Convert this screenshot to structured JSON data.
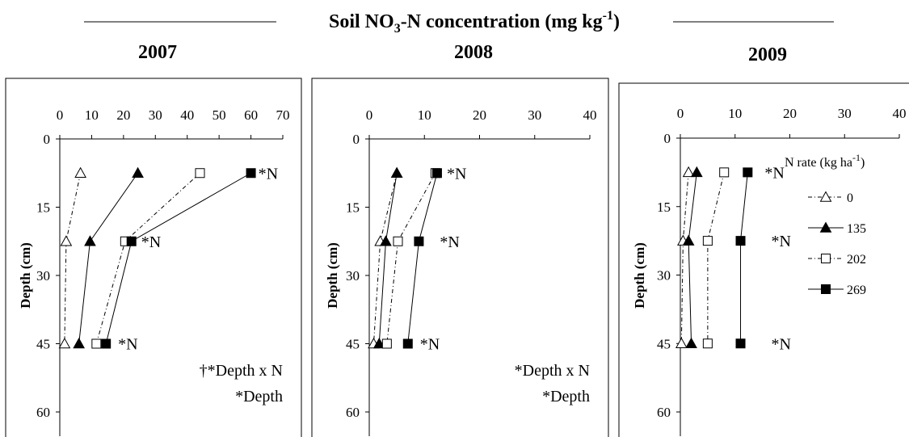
{
  "figure": {
    "title_main": "Soil NO",
    "title_sub": "3",
    "title_mid": "-N concentration (mg kg",
    "title_sup": "-1",
    "title_end": ")"
  },
  "legend": {
    "title_main": "N rate (kg ha",
    "title_sup": "-1",
    "title_end": ")",
    "entries": [
      {
        "label": "0",
        "marker": "triangle-open",
        "dash": "dashdot"
      },
      {
        "label": "135",
        "marker": "triangle-filled",
        "dash": "solid"
      },
      {
        "label": "202",
        "marker": "square-open",
        "dash": "dashdot"
      },
      {
        "label": "269",
        "marker": "square-filled",
        "dash": "solid"
      }
    ]
  },
  "chart_data": [
    {
      "type": "line",
      "year": "2007",
      "ylabel": "Depth (cm)",
      "xlim": [
        0,
        70
      ],
      "xticks": [
        "0",
        "10",
        "20",
        "30",
        "40",
        "50",
        "60",
        "70"
      ],
      "ylim": [
        0,
        60
      ],
      "yticks": [
        "0",
        "15",
        "30",
        "45",
        "60"
      ],
      "depths": [
        7.5,
        22.5,
        45
      ],
      "series": [
        {
          "name": "0",
          "values": [
            6.5,
            2.0,
            1.5
          ]
        },
        {
          "name": "135",
          "values": [
            24.5,
            9.5,
            6.0
          ]
        },
        {
          "name": "202",
          "values": [
            44.0,
            20.5,
            11.5
          ]
        },
        {
          "name": "269",
          "values": [
            60.0,
            22.5,
            14.5
          ]
        }
      ],
      "point_labels": [
        {
          "text": "*N",
          "depth": 7.5,
          "series": "269"
        },
        {
          "text": "*N",
          "depth": 22.5,
          "series": "269"
        },
        {
          "text": "*N",
          "depth": 45,
          "series": "269"
        }
      ],
      "notes": [
        "†*Depth x N",
        "*Depth"
      ]
    },
    {
      "type": "line",
      "year": "2008",
      "ylabel": "Depth (cm)",
      "xlim": [
        0,
        40
      ],
      "xticks": [
        "0",
        "10",
        "20",
        "30",
        "40"
      ],
      "ylim": [
        0,
        60
      ],
      "yticks": [
        "0",
        "15",
        "30",
        "45",
        "60"
      ],
      "depths": [
        7.5,
        22.5,
        45
      ],
      "series": [
        {
          "name": "0",
          "values": [
            5.0,
            2.0,
            0.8
          ]
        },
        {
          "name": "135",
          "values": [
            5.0,
            3.0,
            1.8
          ]
        },
        {
          "name": "202",
          "values": [
            12.0,
            5.2,
            3.2
          ]
        },
        {
          "name": "269",
          "values": [
            12.3,
            9.0,
            7.0
          ]
        }
      ],
      "point_labels": [
        {
          "text": "*N",
          "depth": 7.5,
          "series": "269"
        },
        {
          "text": "*N",
          "depth": 22.5,
          "series": "269"
        },
        {
          "text": "*N",
          "depth": 45,
          "series": "269"
        }
      ],
      "notes": [
        "*Depth x N",
        "*Depth"
      ]
    },
    {
      "type": "line",
      "year": "2009",
      "ylabel": "Depth (cm)",
      "xlim": [
        0,
        40
      ],
      "xticks": [
        "0",
        "10",
        "20",
        "30",
        "40"
      ],
      "ylim": [
        0,
        60
      ],
      "yticks": [
        "0",
        "15",
        "30",
        "45",
        "60"
      ],
      "depths": [
        7.5,
        22.5,
        45
      ],
      "series": [
        {
          "name": "0",
          "values": [
            1.5,
            0.5,
            0.2
          ]
        },
        {
          "name": "135",
          "values": [
            3.0,
            1.5,
            2.0
          ]
        },
        {
          "name": "202",
          "values": [
            8.0,
            5.0,
            5.0
          ]
        },
        {
          "name": "269",
          "values": [
            12.3,
            11.0,
            11.0
          ]
        }
      ],
      "point_labels": [
        {
          "text": "*N",
          "depth": 7.5,
          "series": "269"
        },
        {
          "text": "*N",
          "depth": 22.5,
          "series": "269"
        },
        {
          "text": "*N",
          "depth": 45,
          "series": "269"
        }
      ],
      "notes": []
    }
  ]
}
